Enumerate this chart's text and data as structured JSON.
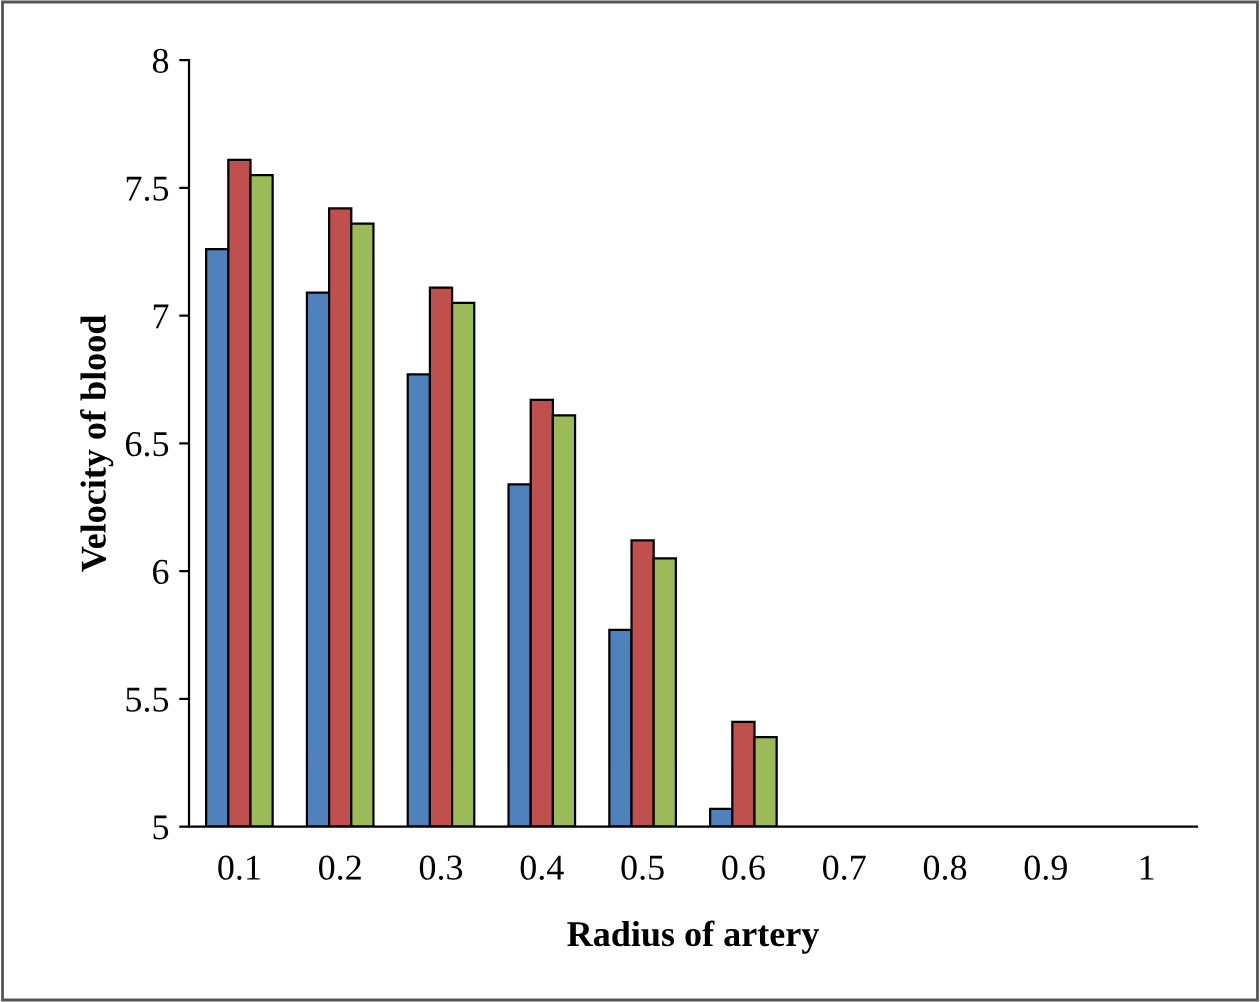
{
  "chart_data": {
    "type": "bar",
    "xlabel": "Radius of artery",
    "ylabel": "Velocity of blood",
    "categories": [
      "0.1",
      "0.2",
      "0.3",
      "0.4",
      "0.5",
      "0.6",
      "0.7",
      "0.8",
      "0.9",
      "1"
    ],
    "series": [
      {
        "color": "#4f81bd",
        "values": [
          7.26,
          7.09,
          6.77,
          6.34,
          5.77,
          5.07,
          null,
          null,
          null,
          null
        ]
      },
      {
        "color": "#c0504d",
        "values": [
          7.61,
          7.42,
          7.11,
          6.67,
          6.12,
          5.41,
          null,
          null,
          null,
          null
        ]
      },
      {
        "color": "#9bbb59",
        "values": [
          7.55,
          7.36,
          7.05,
          6.61,
          6.05,
          5.35,
          null,
          null,
          null,
          null
        ]
      }
    ],
    "ylim": [
      5,
      8
    ],
    "yticks": [
      5,
      5.5,
      6,
      6.5,
      7,
      7.5,
      8
    ],
    "grid": false,
    "legend": false
  }
}
